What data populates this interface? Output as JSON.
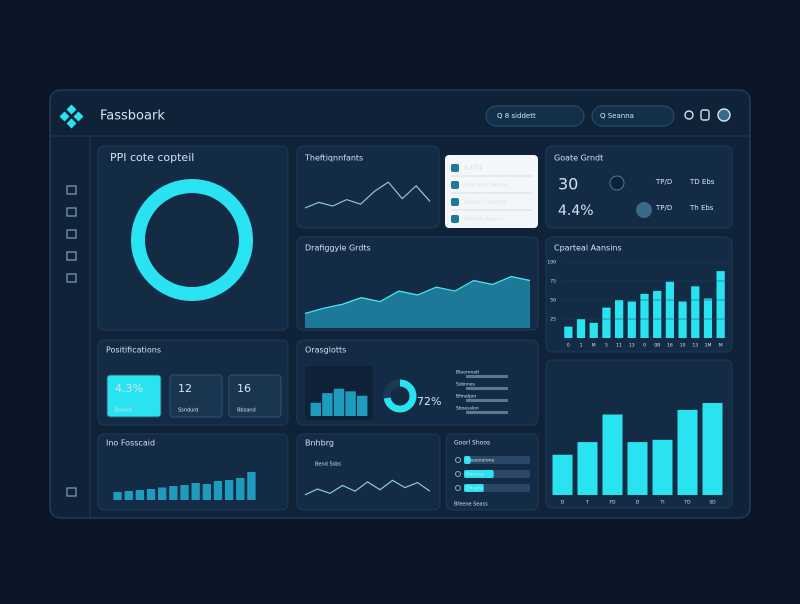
{
  "header": {
    "title": "Fassboark",
    "search": "Q 8 siddett",
    "filter": "Q Seanna"
  },
  "kpi": {
    "title": "PPI cote copteil",
    "donut": {
      "type": "pie",
      "values": [
        100
      ],
      "ylim": [
        0,
        100
      ]
    }
  },
  "trend": {
    "title": "Theftiqnnfants",
    "chart": {
      "type": "line",
      "values": [
        22,
        34,
        26,
        40,
        30,
        58,
        78,
        42,
        70,
        36
      ],
      "ylim": [
        0,
        100
      ]
    }
  },
  "menu": {
    "items": [
      "4374",
      "Dsa Dwo Mcshe",
      "Dooie Cheafing",
      "Fesnbe Bowsa"
    ]
  },
  "stats": {
    "title": "Goate Grndt",
    "primary": "30",
    "secondary": "4.4%",
    "side": [
      "TP/D",
      "TD Ebs",
      "TP/D",
      "Th Ebs"
    ]
  },
  "area": {
    "title": "Drafiggyle Grdts",
    "chart": {
      "type": "area",
      "values": [
        22,
        30,
        36,
        46,
        40,
        56,
        50,
        62,
        56,
        72,
        66,
        78,
        72
      ],
      "ylim": [
        0,
        100
      ]
    }
  },
  "bars_top": {
    "title": "Cparteal Aansins",
    "chart": {
      "type": "bar",
      "categories": [
        "0",
        "1",
        "M",
        "5",
        "11",
        "13",
        "0",
        "0B",
        "16",
        "10",
        "13",
        "1M",
        "M"
      ],
      "values": [
        15,
        25,
        20,
        40,
        50,
        48,
        58,
        62,
        74,
        48,
        68,
        52,
        88
      ],
      "ylim": [
        0,
        100
      ],
      "yticks": [
        25,
        50,
        75,
        100
      ]
    }
  },
  "positions": {
    "title": "Positifications",
    "cards": [
      {
        "value": "4.3%",
        "label": "Bsonld"
      },
      {
        "value": "12",
        "label": "Ssndurd"
      },
      {
        "value": "16",
        "label": "Bbsand"
      }
    ]
  },
  "overview": {
    "title": "Orasglotts",
    "chart": {
      "type": "bar",
      "values": [
        30,
        52,
        62,
        56,
        46
      ],
      "ylim": [
        0,
        100
      ]
    },
    "donut": {
      "label": "72%",
      "value": 72
    },
    "rows": [
      "Bleornnatl",
      "Ssbnnes",
      "Bfmalpor",
      "Sboesslon"
    ]
  },
  "big_bars": {
    "chart": {
      "type": "bar",
      "categories": [
        "D",
        "T",
        "FD",
        "D",
        "Tl",
        "TD",
        "SD"
      ],
      "values": [
        35,
        46,
        70,
        46,
        48,
        74,
        80
      ],
      "ylim": [
        0,
        100
      ]
    }
  },
  "bottom_bars": {
    "title": "Ino Fosscaid",
    "chart": {
      "type": "bar",
      "values": [
        16,
        18,
        20,
        22,
        25,
        28,
        30,
        34,
        32,
        38,
        40,
        44,
        56
      ],
      "ylim": [
        0,
        100
      ]
    }
  },
  "bottom_line": {
    "title": "Bnhbrg",
    "legend": "Bend Ssbs",
    "chart": {
      "type": "line",
      "values": [
        20,
        36,
        24,
        46,
        30,
        56,
        34,
        60,
        40,
        54,
        30
      ],
      "ylim": [
        0,
        100
      ]
    }
  },
  "goals": {
    "title": "Goorl Shoos",
    "rows": [
      {
        "label": "Cleaenerone",
        "value": 10
      },
      {
        "label": "Daenna",
        "value": 45
      },
      {
        "label": "Dfisalle",
        "value": 30
      }
    ],
    "footer": "Bfeene Seass"
  }
}
